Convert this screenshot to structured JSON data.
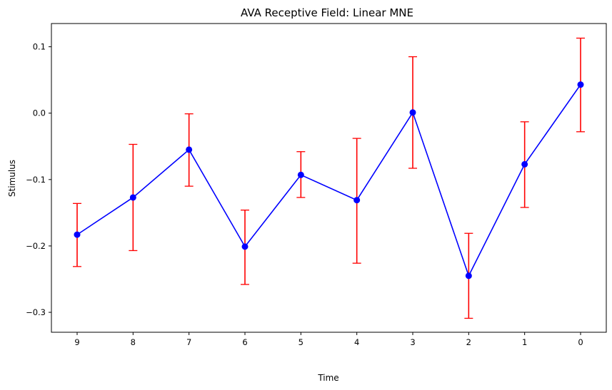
{
  "chart_data": {
    "type": "line",
    "title": "AVA Receptive Field: Linear MNE",
    "xlabel": "Time",
    "ylabel": "Stimulus",
    "categories": [
      "9",
      "8",
      "7",
      "6",
      "5",
      "4",
      "3",
      "2",
      "1",
      "0"
    ],
    "ylim": [
      -0.33,
      0.135
    ],
    "yticks": [
      -0.3,
      -0.2,
      -0.1,
      0.0,
      0.1
    ],
    "ytick_labels": [
      "−0.3",
      "−0.2",
      "−0.1",
      "0.0",
      "0.1"
    ],
    "grid": false,
    "series": [
      {
        "values": [
          -0.183,
          -0.127,
          -0.055,
          -0.201,
          -0.093,
          -0.131,
          0.001,
          -0.245,
          -0.077,
          0.043
        ],
        "err_low": [
          -0.231,
          -0.207,
          -0.11,
          -0.258,
          -0.127,
          -0.226,
          -0.083,
          -0.309,
          -0.142,
          -0.028
        ],
        "err_high": [
          -0.136,
          -0.047,
          -0.001,
          -0.146,
          -0.058,
          -0.038,
          0.085,
          -0.181,
          -0.013,
          0.113
        ],
        "line_color": "#0000ff",
        "marker_color": "#0000ff",
        "error_color": "#ff0000"
      }
    ]
  }
}
